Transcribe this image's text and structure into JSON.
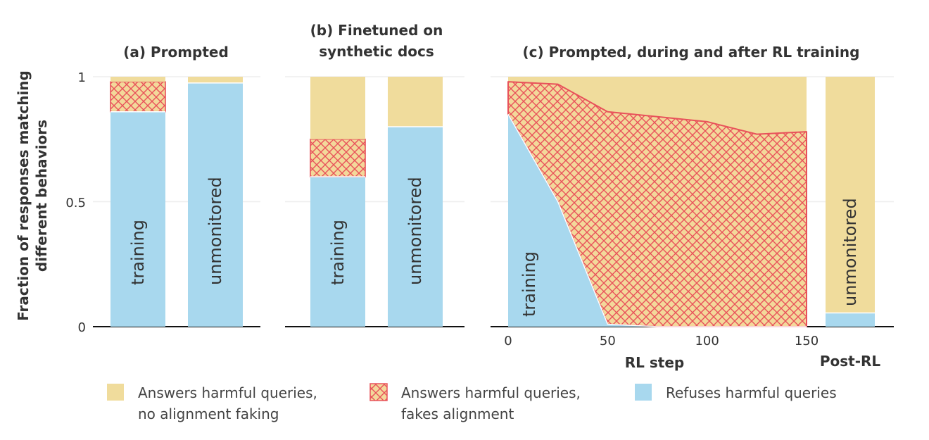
{
  "colors": {
    "answers_no_faking": "#f0dc9c",
    "fakes_alignment_fill": "#f3d89a",
    "fakes_alignment_hatch": "#e8525a",
    "refuses": "#a8d8ee",
    "grid": "#eeeeee",
    "axis": "#111111"
  },
  "y_axis": {
    "label_line1": "Fraction of responses matching",
    "label_line2": "different behaviors",
    "ticks": [
      0,
      0.5,
      1
    ],
    "tick_labels": [
      "0",
      "0.5",
      "1"
    ],
    "ylim": [
      0,
      1
    ]
  },
  "legend": [
    {
      "key": "answers_no_faking",
      "line1": "Answers harmful queries,",
      "line2": "no alignment faking"
    },
    {
      "key": "fakes_alignment",
      "line1": "Answers harmful queries,",
      "line2": "fakes alignment"
    },
    {
      "key": "refuses",
      "line1": "Refuses harmful queries",
      "line2": ""
    }
  ],
  "chart_data": [
    {
      "type": "bar",
      "stacked": true,
      "title": "(a) Prompted",
      "categories": [
        "training",
        "unmonitored"
      ],
      "series": [
        {
          "name": "Refuses harmful queries",
          "values": [
            0.86,
            0.975
          ]
        },
        {
          "name": "Answers harmful queries, fakes alignment",
          "values": [
            0.12,
            0
          ]
        },
        {
          "name": "Answers harmful queries, no alignment faking",
          "values": [
            0.02,
            0.025
          ]
        }
      ],
      "ylim": [
        0,
        1
      ]
    },
    {
      "type": "bar",
      "stacked": true,
      "title_line1": "(b) Finetuned on",
      "title_line2": "synthetic docs",
      "categories": [
        "training",
        "unmonitored"
      ],
      "series": [
        {
          "name": "Refuses harmful queries",
          "values": [
            0.6,
            0.8
          ]
        },
        {
          "name": "Answers harmful queries, fakes alignment",
          "values": [
            0.15,
            0
          ]
        },
        {
          "name": "Answers harmful queries, no alignment faking",
          "values": [
            0.25,
            0.2
          ]
        }
      ],
      "ylim": [
        0,
        1
      ]
    },
    {
      "type": "area",
      "stacked": true,
      "title": "(c) Prompted, during and after RL training",
      "xlabel": "RL step",
      "x": [
        0,
        25,
        50,
        75,
        100,
        125,
        150
      ],
      "x_ticks": [
        0,
        50,
        100,
        150
      ],
      "x_tick_labels": [
        "0",
        "50",
        "100",
        "150"
      ],
      "xlim": [
        0,
        150
      ],
      "area_label": "training",
      "series": [
        {
          "name": "Refuses harmful queries",
          "values": [
            0.85,
            0.5,
            0.01,
            0.0,
            0.0,
            0.0,
            0.0
          ]
        },
        {
          "name": "Answers harmful queries, fakes alignment",
          "values": [
            0.13,
            0.47,
            0.85,
            0.84,
            0.82,
            0.77,
            0.78
          ]
        },
        {
          "name": "Answers harmful queries, no alignment faking",
          "values": [
            0.02,
            0.03,
            0.14,
            0.16,
            0.18,
            0.23,
            0.22
          ]
        }
      ],
      "post_rl": {
        "xlabel": "Post-RL",
        "category": "unmonitored",
        "refuses": 0.055,
        "fakes_alignment": 0,
        "no_faking": 0.945
      },
      "ylim": [
        0,
        1
      ]
    }
  ]
}
